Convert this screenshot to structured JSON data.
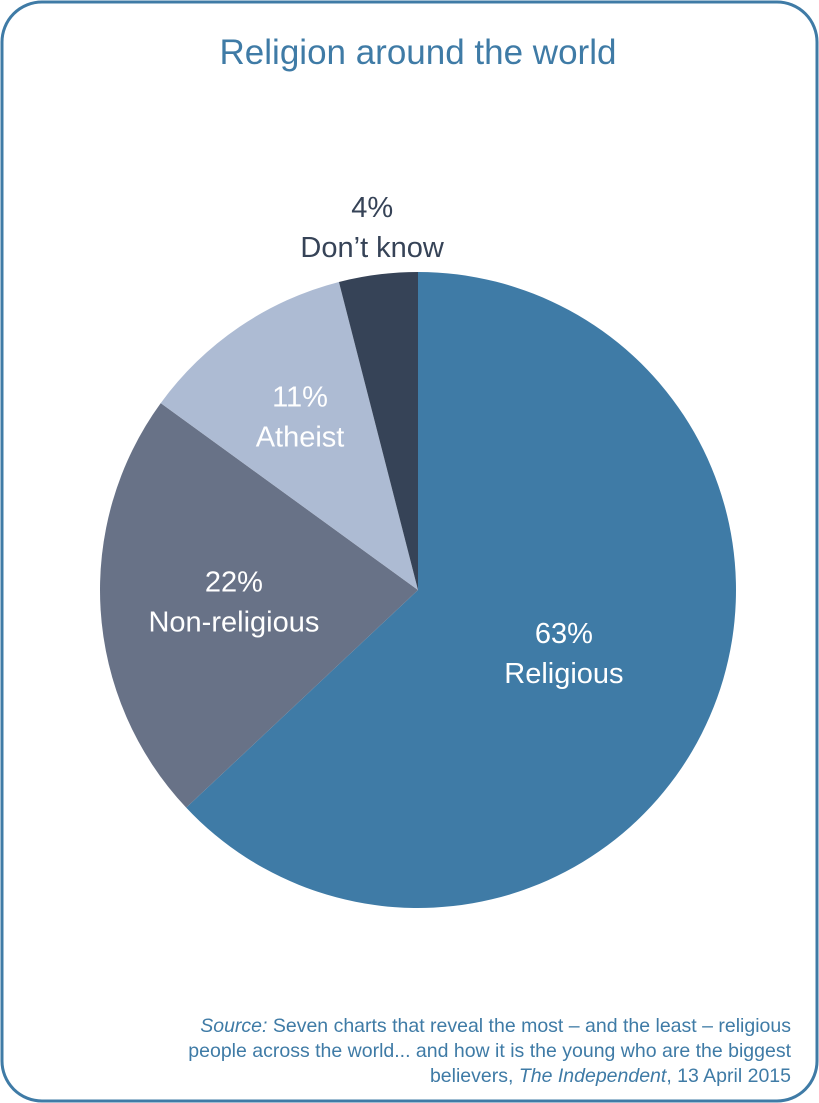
{
  "chart_data": {
    "type": "pie",
    "title": "Religion around the world",
    "categories": [
      "Religious",
      "Non-religious",
      "Atheist",
      "Don’t know"
    ],
    "values": [
      63,
      22,
      11,
      4
    ],
    "value_labels": [
      "63%",
      "22%",
      "11%",
      "4%"
    ],
    "colors": [
      "#3f7ba6",
      "#687287",
      "#adbbd3",
      "#364357"
    ],
    "source": [
      "Source:",
      "Seven charts that reveal the most – and the least – religious people across the world... and how it is the young who are the biggest believers,",
      "The Independent",
      ", 13 April 2015"
    ]
  }
}
